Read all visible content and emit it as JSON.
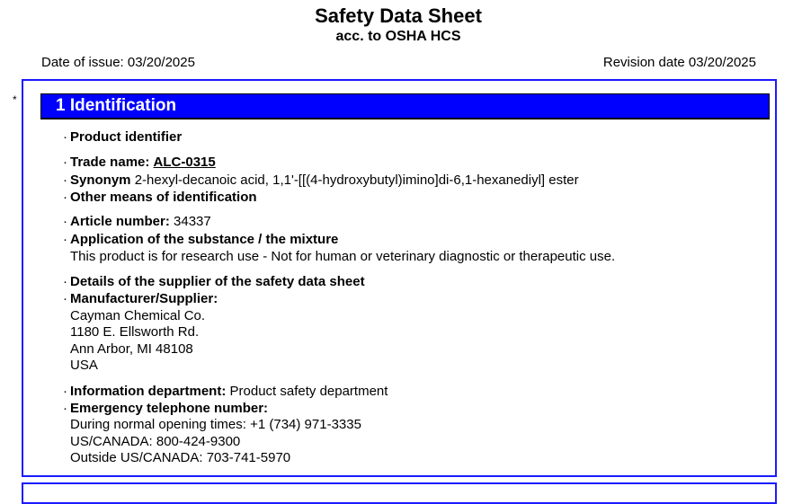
{
  "header": {
    "title": "Safety Data Sheet",
    "subtitle": "acc. to OSHA HCS",
    "date_of_issue": "Date of issue: 03/20/2025",
    "revision_date": "Revision date 03/20/2025"
  },
  "section1": {
    "marker": "*",
    "heading": "1 Identification",
    "product_identifier": "Product identifier",
    "trade_name_label": "Trade name:",
    "trade_name": "ALC-0315",
    "synonym_label": "Synonym",
    "synonym": "2-hexyl-decanoic acid, 1,1'-[[(4-hydroxybutyl)imino]di-6,1-hexanediyl] ester",
    "other_means": "Other means of identification",
    "article_label": "Article number:",
    "article_number": "34337",
    "application_label": "Application of the substance / the mixture",
    "application_text": "This product is for research use - Not for human or veterinary diagnostic or therapeutic use.",
    "supplier_details": "Details of the supplier of the safety data sheet",
    "manufacturer_label": "Manufacturer/Supplier:",
    "address": [
      "Cayman Chemical Co.",
      "1180 E. Ellsworth Rd.",
      "Ann Arbor, MI 48108",
      "USA"
    ],
    "info_label": "Information department:",
    "info_value": "Product safety department",
    "emergency_label": "Emergency telephone number:",
    "phones": [
      "During normal opening times: +1 (734) 971-3335",
      "US/CANADA: 800-424-9300",
      "Outside US/CANADA: 703-741-5970"
    ]
  }
}
